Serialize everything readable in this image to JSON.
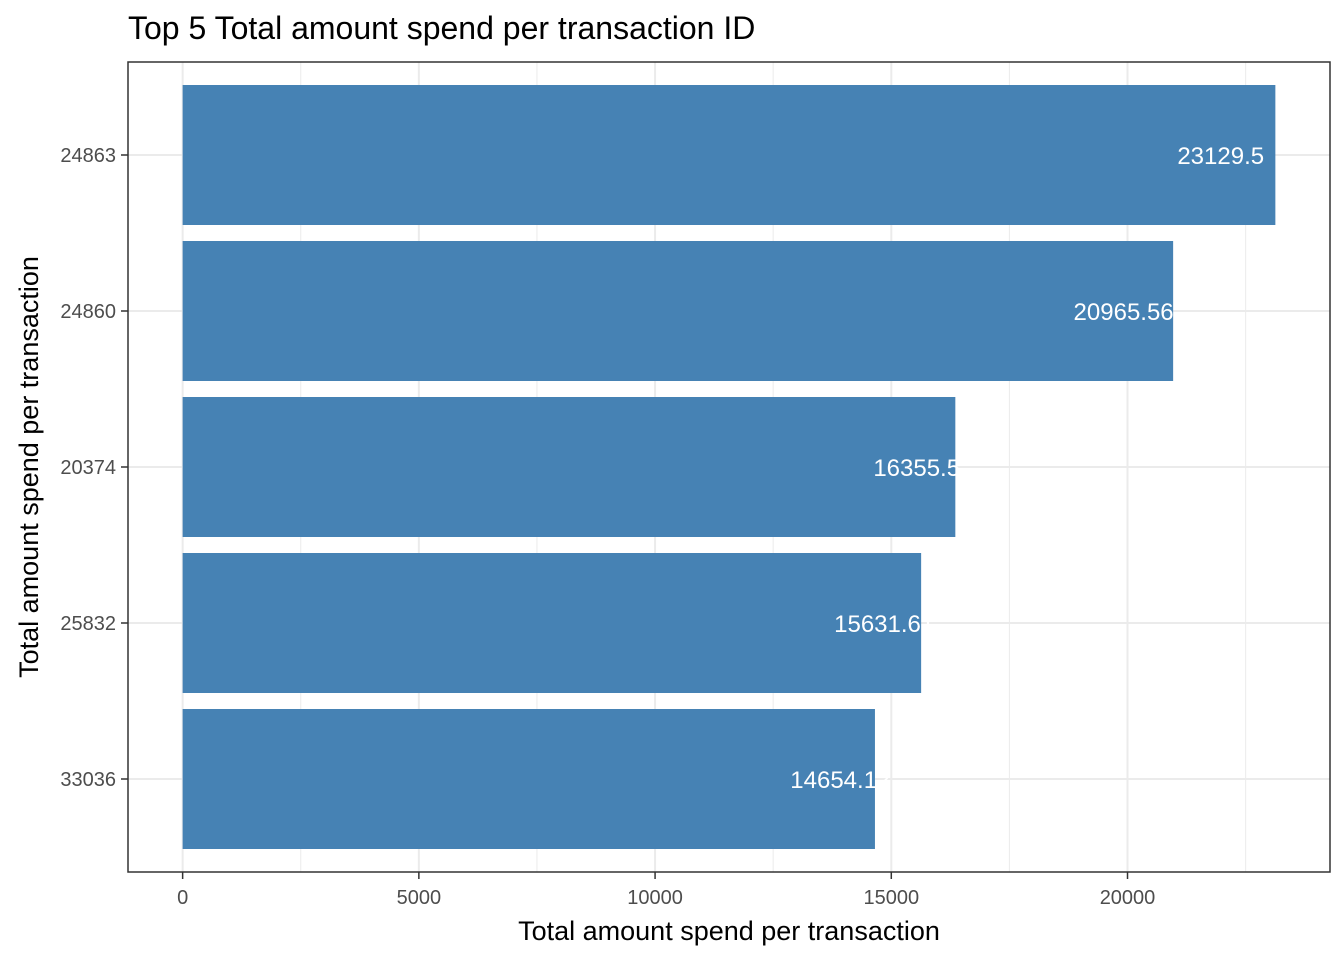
{
  "chart_data": {
    "type": "bar",
    "orientation": "horizontal",
    "title": "Top 5 Total amount spend per transaction ID",
    "xlabel": "Total amount spend per transaction",
    "ylabel": "Total amount spend per transaction",
    "categories": [
      "24863",
      "24860",
      "20374",
      "25832",
      "33036"
    ],
    "values": [
      23129.5,
      20965.56,
      16355.5,
      15631.61,
      14654.12
    ],
    "data_labels": [
      "23129.5",
      "20965.56",
      "16355.5",
      "15631.61",
      "14654.12"
    ],
    "x_ticks": [
      0,
      5000,
      10000,
      15000,
      20000
    ],
    "x_tick_labels": [
      "0",
      "5000",
      "10000",
      "15000",
      "20000"
    ],
    "xlim": [
      -1156.5,
      24286
    ],
    "grid": true,
    "bar_color": "#4682B4",
    "label_color": "#ffffff",
    "grid_color": "#EBEBEB",
    "panel_border_color": "#333333"
  }
}
